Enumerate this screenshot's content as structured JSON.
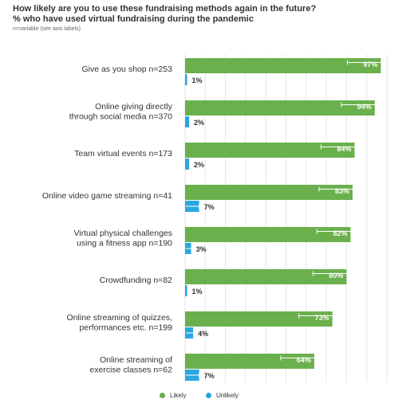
{
  "title": "How likely are you to use these fundraising methods again in the future?",
  "subtitle": "% who have used virtual fundraising during the pandemic",
  "note": "n=variable (see axis labels)",
  "colors": {
    "likely": "#6ab04c",
    "unlikely": "#29a8e0",
    "error": "#ffffff",
    "grid": "#e6e6e6"
  },
  "chart_data": {
    "type": "bar",
    "orientation": "horizontal",
    "categories": [
      [
        "Give as you shop n=253"
      ],
      [
        "Online giving directly",
        "through social media n=370"
      ],
      [
        "Team virtual events n=173"
      ],
      [
        "Online video game streaming n=41"
      ],
      [
        "Virtual physical challenges",
        "using a fitness app n=190"
      ],
      [
        "Crowdfunding n=82"
      ],
      [
        "Online streaming of quizzes,",
        "performances etc. n=199"
      ],
      [
        "Online streaming of",
        "exercise classes n=62"
      ]
    ],
    "series": [
      {
        "name": "Likely",
        "values": [
          97,
          94,
          84,
          83,
          82,
          80,
          73,
          64
        ],
        "labels": [
          "97%",
          "94%",
          "84%",
          "83%",
          "82%",
          "80%",
          "73%",
          "64%"
        ]
      },
      {
        "name": "Unlikely",
        "values": [
          1,
          2,
          2,
          7,
          3,
          1,
          4,
          7
        ],
        "labels": [
          "1%",
          "2%",
          "2%",
          "7%",
          "3%",
          "1%",
          "4%",
          "7%"
        ]
      }
    ],
    "xlim": [
      0,
      100
    ],
    "grid": true,
    "legend_position": "bottom"
  }
}
